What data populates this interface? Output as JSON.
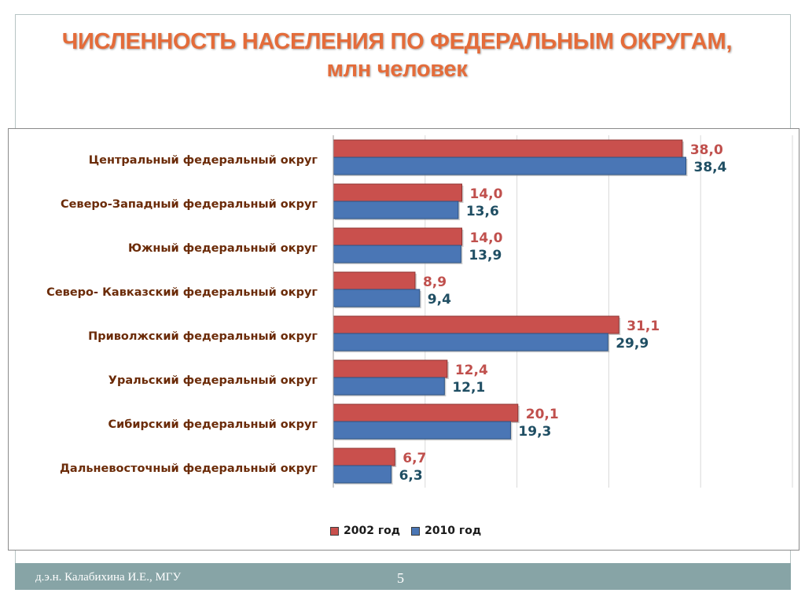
{
  "slide": {
    "title_line1": "ЧИСЛЕННОСТЬ НАСЕЛЕНИЯ ПО ФЕДЕРАЛЬНЫМ ОКРУГАМ,",
    "title_line2": "млн человек",
    "author": "д.э.н. Калабихина И.Е., МГУ",
    "page_number": "5"
  },
  "colors": {
    "title": "#e46c3a",
    "series_2002": "#c9504d",
    "series_2010": "#4a76b5",
    "label_2002": "#c0504d",
    "label_2010": "#1f4e63",
    "category_label": "#6b2b08",
    "footer": "#87a4a6"
  },
  "chart_data": {
    "type": "bar",
    "orientation": "horizontal",
    "categories": [
      "Центральный федеральный округ",
      "Северо-Западный федеральный округ",
      "Южный федеральный округ",
      "Северо- Кавказский федеральный округ",
      "Приволжский федеральный округ",
      "Уральский федеральный округ",
      "Сибирский федеральный округ",
      "Дальневосточный федеральный округ"
    ],
    "series": [
      {
        "name": "2002 год",
        "values": [
          38.0,
          14.0,
          14.0,
          8.9,
          31.1,
          12.4,
          20.1,
          6.7
        ],
        "labels": [
          "38,0",
          "14,0",
          "14,0",
          "8,9",
          "31,1",
          "12,4",
          "20,1",
          "6,7"
        ]
      },
      {
        "name": "2010 год",
        "values": [
          38.4,
          13.6,
          13.9,
          9.4,
          29.9,
          12.1,
          19.3,
          6.3
        ],
        "labels": [
          "38,4",
          "13,6",
          "13,9",
          "9,4",
          "29,9",
          "12,1",
          "19,3",
          "6,3"
        ]
      }
    ],
    "xlim": [
      0,
      50
    ],
    "grid": true,
    "legend_position": "bottom"
  }
}
